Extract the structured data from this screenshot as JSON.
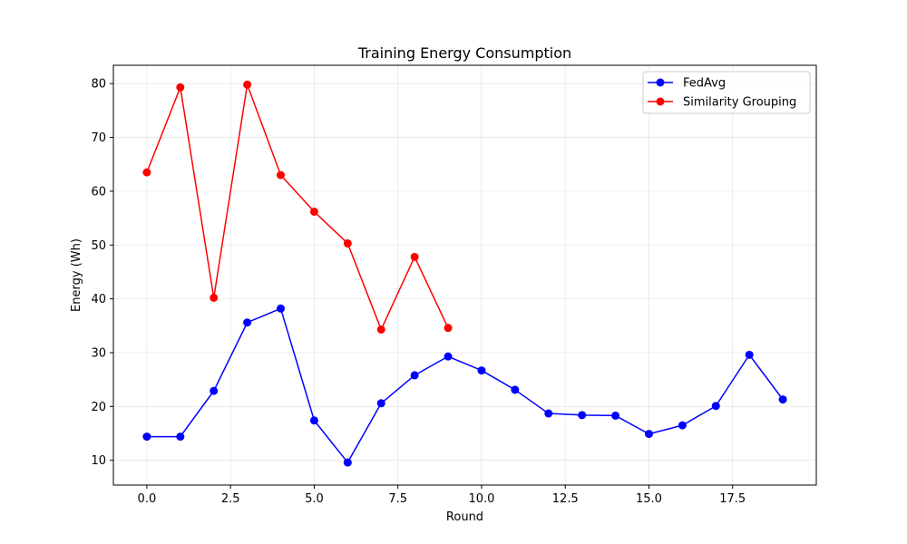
{
  "chart_data": {
    "type": "line",
    "title": "Training Energy Consumption",
    "xlabel": "Round",
    "ylabel": "Energy (Wh)",
    "xlim": [
      -1.0,
      20.0
    ],
    "ylim": [
      5.4,
      83.4
    ],
    "xticks": [
      "0.0",
      "2.5",
      "5.0",
      "7.5",
      "10.0",
      "12.5",
      "15.0",
      "17.5"
    ],
    "xtick_values": [
      0,
      2.5,
      5,
      7.5,
      10,
      12.5,
      15,
      17.5
    ],
    "yticks": [
      "10",
      "20",
      "30",
      "40",
      "50",
      "60",
      "70",
      "80"
    ],
    "ytick_values": [
      10,
      20,
      30,
      40,
      50,
      60,
      70,
      80
    ],
    "grid": true,
    "legend_position": "top-right",
    "series": [
      {
        "name": "FedAvg",
        "color": "#0000ff",
        "x": [
          0,
          1,
          2,
          3,
          4,
          5,
          6,
          7,
          8,
          9,
          10,
          11,
          12,
          13,
          14,
          15,
          16,
          17,
          18,
          19
        ],
        "values": [
          14.4,
          14.4,
          22.9,
          35.6,
          38.2,
          17.4,
          9.6,
          20.6,
          25.8,
          29.3,
          26.7,
          23.1,
          18.7,
          18.4,
          18.3,
          14.9,
          16.5,
          20.1,
          29.6,
          21.3
        ]
      },
      {
        "name": "Similarity Grouping",
        "color": "#ff0000",
        "x": [
          0,
          1,
          2,
          3,
          4,
          5,
          6,
          7,
          8,
          9
        ],
        "values": [
          63.5,
          79.3,
          40.2,
          79.8,
          63.0,
          56.2,
          50.3,
          34.3,
          47.8,
          34.6
        ]
      }
    ]
  }
}
